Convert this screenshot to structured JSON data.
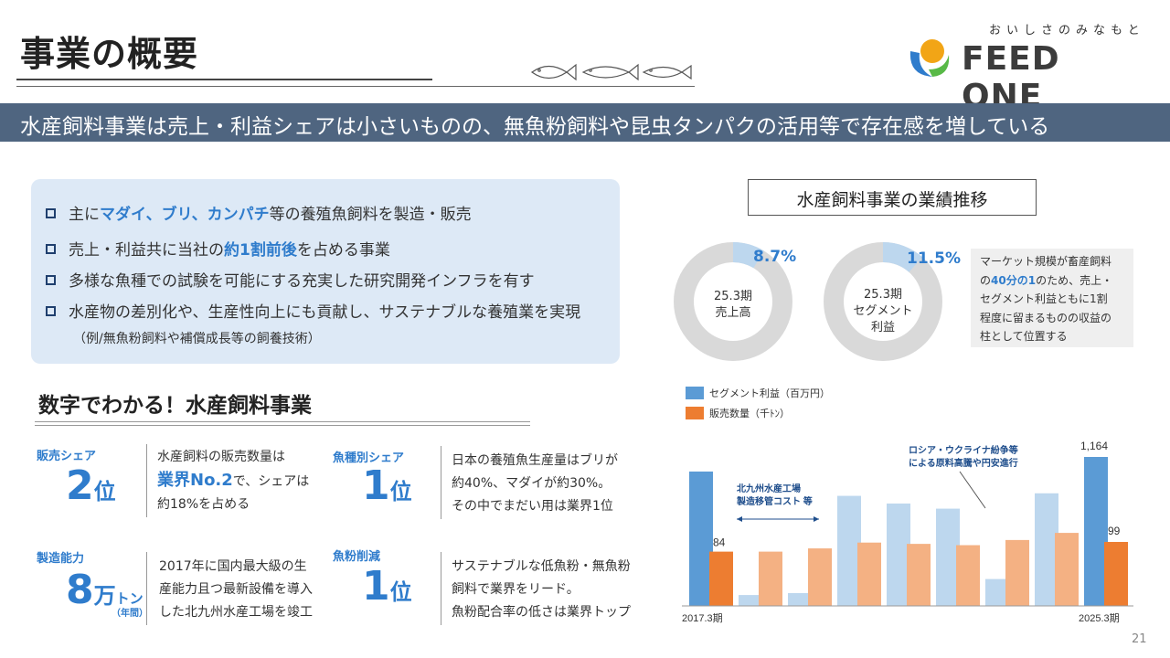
{
  "page": {
    "title": "事業の概要",
    "banner": "水産飼料事業は売上・利益シェアは小さいものの、無魚粉飼料や昆虫タンパクの活用等で存在感を増している",
    "page_number": "21"
  },
  "logo": {
    "tagline": "おいしさのみなもと",
    "name": "FEED ONE",
    "colors": {
      "orange": "#f2a516",
      "green": "#58b947",
      "blue": "#2f7ccc"
    }
  },
  "points": [
    {
      "pre": "主に",
      "hl": "マダイ、ブリ、カンパチ",
      "post": "等の養殖魚飼料を製造・販売"
    },
    {
      "pre": "売上・利益共に当社の",
      "hl": "約1割前後",
      "post": "を占める事業"
    },
    {
      "pre": "多様な魚種での試験を可能にする充実した研究開発インフラを有す",
      "hl": "",
      "post": ""
    },
    {
      "pre": "水産物の差別化や、生産性向上にも貢献し、サステナブルな養殖業を実現",
      "hl": "",
      "post": ""
    }
  ],
  "points_sub": "（例/無魚粉飼料や補償成長等の飼養技術）",
  "numbers_section": {
    "title": "数字でわかる！水産飼料事業",
    "stats": [
      {
        "label": "販売シェア",
        "value": "2",
        "unit": "位",
        "desc": [
          "水産飼料の販売数量は",
          "業界No.2",
          "で、シェアは",
          "約18%を占める"
        ]
      },
      {
        "label": "魚種別シェア",
        "value": "1",
        "unit": "位",
        "desc": [
          "日本の養殖魚生産量はブリが",
          "約40%、マダイが約30%。",
          "その中でまだい用は業界1位"
        ]
      },
      {
        "label": "製造能力",
        "value": "8",
        "unit": "万",
        "unit2": "トン",
        "small": "（年間）",
        "desc": [
          "2017年に国内最大級の生",
          "産能力且つ最新設備を導入",
          "した北九州水産工場を竣工"
        ]
      },
      {
        "label": "魚粉削減",
        "value": "1",
        "unit": "位",
        "desc": [
          "サステナブルな低魚粉・無魚粉",
          "飼料で業界をリード。",
          "魚粉配合率の低さは業界トップ"
        ]
      }
    ]
  },
  "performance": {
    "title": "水産飼料事業の業績推移",
    "donuts": [
      {
        "pct_label": "8.7%",
        "share": 0.087,
        "label_lines": [
          "25.3期",
          "売上高"
        ]
      },
      {
        "pct_label": "11.5%",
        "share": 0.115,
        "label_lines": [
          "25.3期",
          "セグメント",
          "利益"
        ]
      }
    ],
    "note": [
      "マーケット規模が畜産飼料",
      "の",
      "40分の1",
      "のため、売上・",
      "セグメント利益ともに1割",
      "程度に留まるものの収益の",
      "柱として位置する"
    ]
  },
  "chart_data": {
    "type": "bar",
    "categories": [
      "2017.3期",
      "",
      "",
      "",
      "",
      "",
      "",
      "",
      "2025.3期"
    ],
    "series": [
      {
        "name": "セグメント利益（百万円）",
        "values": [
          1050,
          85,
          100,
          860,
          800,
          760,
          210,
          880,
          1164
        ]
      },
      {
        "name": "販売数量（千ﾄﾝ）",
        "values": [
          84,
          84,
          89,
          98,
          96,
          94,
          102,
          113,
          99
        ]
      }
    ],
    "data_labels": {
      "first_quantity": "84",
      "last_profit": "1,164",
      "last_quantity": "99"
    },
    "annotations": [
      {
        "text": [
          "北九州水産工場",
          "製造移管コスト 等"
        ]
      },
      {
        "text": [
          "ロシア・ウクライナ紛争等",
          "による原料高騰や円安進行"
        ]
      }
    ],
    "legend": {
      "position": "top-left",
      "entries": [
        "セグメント利益（百万円）",
        "販売数量（千ﾄﾝ）"
      ]
    },
    "colors": {
      "profit": "#5b9bd5",
      "profit_light": "#bdd7ee",
      "quantity": "#ed7d31",
      "quantity_light": "#f4b183"
    },
    "grid": false
  }
}
